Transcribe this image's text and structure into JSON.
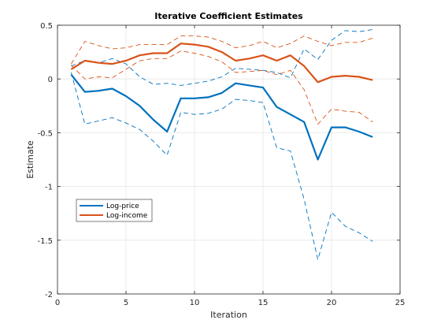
{
  "chart_data": {
    "type": "line",
    "title": "Iterative Coefficient Estimates",
    "xlabel": "Iteration",
    "ylabel": "Estimate",
    "xlim": [
      0,
      25
    ],
    "ylim": [
      -2,
      0.5
    ],
    "xticks": [
      0,
      5,
      10,
      15,
      20,
      25
    ],
    "xtick_labels": [
      "0",
      "5",
      "10",
      "15",
      "20",
      "25"
    ],
    "yticks": [
      -2,
      -1.5,
      -1,
      -0.5,
      0,
      0.5
    ],
    "ytick_labels": [
      "-2",
      "-1.5",
      "-1",
      "-0.5",
      "0",
      "0.5"
    ],
    "grid": true,
    "legend_position": "lower-left",
    "x": [
      1,
      2,
      3,
      4,
      5,
      6,
      7,
      8,
      9,
      10,
      11,
      12,
      13,
      14,
      15,
      16,
      17,
      18,
      19,
      20,
      21,
      22,
      23
    ],
    "series": [
      {
        "name": "Log-price",
        "color": "#0072BD",
        "values": [
          0.04,
          -0.12,
          -0.11,
          -0.09,
          -0.16,
          -0.25,
          -0.38,
          -0.49,
          -0.18,
          -0.18,
          -0.17,
          -0.13,
          -0.04,
          -0.06,
          -0.08,
          -0.26,
          -0.33,
          -0.4,
          -0.75,
          -0.45,
          -0.45,
          -0.49,
          -0.54
        ],
        "upper": [
          0.12,
          0.17,
          0.15,
          0.19,
          0.14,
          0.02,
          -0.05,
          -0.04,
          -0.06,
          -0.04,
          -0.02,
          0.02,
          0.1,
          0.09,
          0.08,
          0.06,
          0.01,
          0.28,
          0.18,
          0.36,
          0.45,
          0.44,
          0.46
        ],
        "lower": [
          0.06,
          -0.42,
          -0.39,
          -0.36,
          -0.41,
          -0.47,
          -0.58,
          -0.71,
          -0.31,
          -0.33,
          -0.32,
          -0.28,
          -0.19,
          -0.2,
          -0.22,
          -0.64,
          -0.67,
          -1.12,
          -1.68,
          -1.24,
          -1.37,
          -1.43,
          -1.51
        ]
      },
      {
        "name": "Log-income",
        "color": "#D95319",
        "values": [
          0.09,
          0.17,
          0.15,
          0.14,
          0.17,
          0.22,
          0.24,
          0.24,
          0.33,
          0.32,
          0.3,
          0.25,
          0.17,
          0.19,
          0.22,
          0.17,
          0.22,
          0.12,
          -0.03,
          0.02,
          0.03,
          0.02,
          -0.01
        ],
        "upper": [
          0.14,
          0.35,
          0.31,
          0.28,
          0.29,
          0.32,
          0.32,
          0.32,
          0.4,
          0.4,
          0.39,
          0.35,
          0.29,
          0.31,
          0.35,
          0.29,
          0.33,
          0.4,
          0.35,
          0.31,
          0.34,
          0.34,
          0.38
        ],
        "lower": [
          0.13,
          0.0,
          0.02,
          0.01,
          0.09,
          0.17,
          0.19,
          0.19,
          0.26,
          0.24,
          0.21,
          0.16,
          0.06,
          0.07,
          0.08,
          0.04,
          0.08,
          -0.1,
          -0.42,
          -0.28,
          -0.3,
          -0.31,
          -0.4
        ]
      }
    ]
  }
}
